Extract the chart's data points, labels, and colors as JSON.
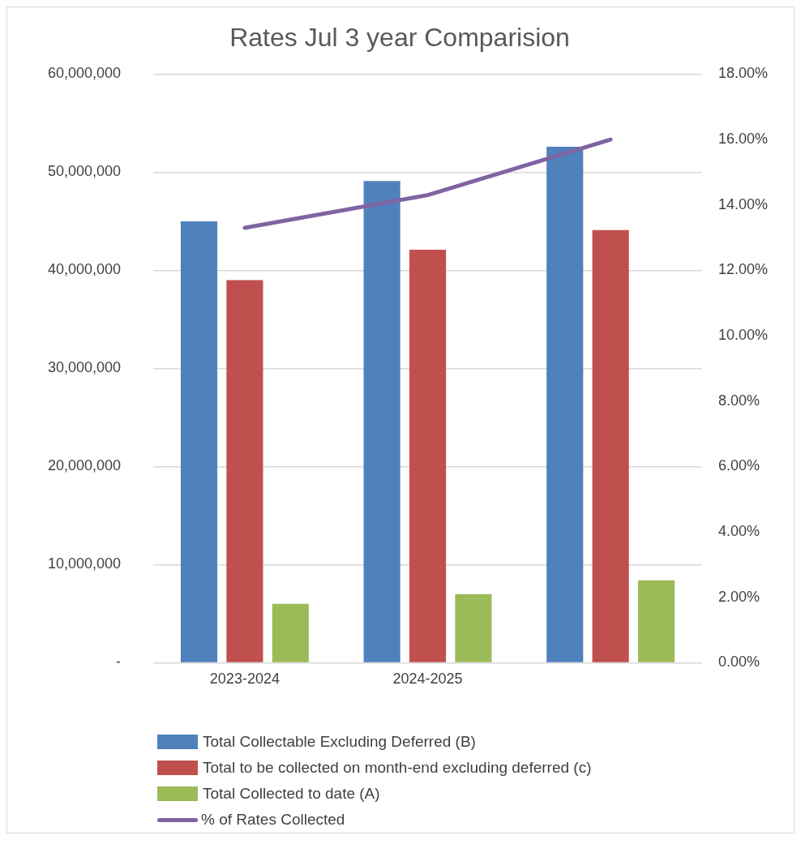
{
  "chart_data": {
    "type": "bar",
    "title": "Rates Jul 3 year Comparision",
    "categories": [
      "2023-2024",
      "2024-2025",
      null
    ],
    "series": [
      {
        "name": "Total Collectable Excluding Deferred (B)",
        "color": "#4f81bd",
        "values": [
          45000000,
          49100000,
          52600000
        ]
      },
      {
        "name": "Total to be collected on month-end excluding deferred (c)",
        "color": "#c0504d",
        "values": [
          39000000,
          42100000,
          44100000
        ]
      },
      {
        "name": "Total Collected to date (A)",
        "color": "#9bbb59",
        "values": [
          6000000,
          7000000,
          8400000
        ]
      },
      {
        "name": "% of Rates Collected",
        "color": "#8064a2",
        "type": "line",
        "axis": "y2",
        "values": [
          13.3,
          14.3,
          16.0
        ]
      }
    ],
    "ylim": [
      0,
      60000000
    ],
    "yticks": [
      {
        "value": 0,
        "label": "-"
      },
      {
        "value": 10000000,
        "label": "10,000,000"
      },
      {
        "value": 20000000,
        "label": "20,000,000"
      },
      {
        "value": 30000000,
        "label": "30,000,000"
      },
      {
        "value": 40000000,
        "label": "40,000,000"
      },
      {
        "value": 50000000,
        "label": "50,000,000"
      },
      {
        "value": 60000000,
        "label": "60,000,000"
      }
    ],
    "y2lim": [
      0,
      18
    ],
    "y2ticks": [
      {
        "value": 0,
        "label": "0.00%"
      },
      {
        "value": 2,
        "label": "2.00%"
      },
      {
        "value": 4,
        "label": "4.00%"
      },
      {
        "value": 6,
        "label": "6.00%"
      },
      {
        "value": 8,
        "label": "8.00%"
      },
      {
        "value": 10,
        "label": "10.00%"
      },
      {
        "value": 12,
        "label": "12.00%"
      },
      {
        "value": 14,
        "label": "14.00%"
      },
      {
        "value": 16,
        "label": "16.00%"
      },
      {
        "value": 18,
        "label": "18.00%"
      }
    ],
    "grid": "y",
    "legend": "bottom",
    "marker": "none"
  }
}
